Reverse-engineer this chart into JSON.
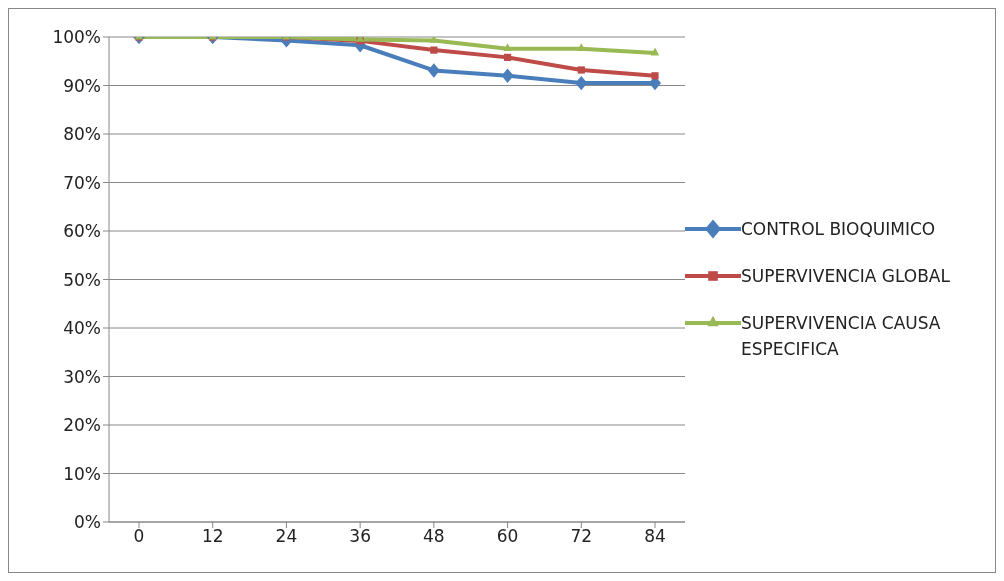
{
  "chart_data": {
    "type": "line",
    "categories": [
      "0",
      "12",
      "24",
      "36",
      "48",
      "60",
      "72",
      "84"
    ],
    "series": [
      {
        "name": "CONTROL BIOQUIMICO",
        "color": "#4a7ebb",
        "marker": "diamond",
        "values": [
          100,
          100,
          99.3,
          98.3,
          93.1,
          92,
          90.5,
          90.5
        ]
      },
      {
        "name": "SUPERVIVENCIA GLOBAL",
        "color": "#be4b48",
        "marker": "square",
        "values": [
          100,
          100,
          100,
          99.2,
          97.3,
          95.8,
          93.2,
          92
        ]
      },
      {
        "name": "SUPERVIVENCIA CAUSA ESPECIFICA",
        "color": "#98b954",
        "marker": "triangle",
        "values": [
          100,
          100,
          100,
          99.5,
          99.3,
          97.6,
          97.6,
          96.7
        ]
      }
    ],
    "ylim": [
      0,
      100
    ],
    "yticks": [
      {
        "value": 0,
        "label": "0%"
      },
      {
        "value": 10,
        "label": "10%"
      },
      {
        "value": 20,
        "label": "20%"
      },
      {
        "value": 30,
        "label": "30%"
      },
      {
        "value": 40,
        "label": "40%"
      },
      {
        "value": 50,
        "label": "50%"
      },
      {
        "value": 60,
        "label": "60%"
      },
      {
        "value": 70,
        "label": "70%"
      },
      {
        "value": 80,
        "label": "80%"
      },
      {
        "value": 90,
        "label": "90%"
      },
      {
        "value": 100,
        "label": "100%"
      }
    ],
    "grid": "y",
    "legend": "right",
    "line_style": "solid"
  }
}
